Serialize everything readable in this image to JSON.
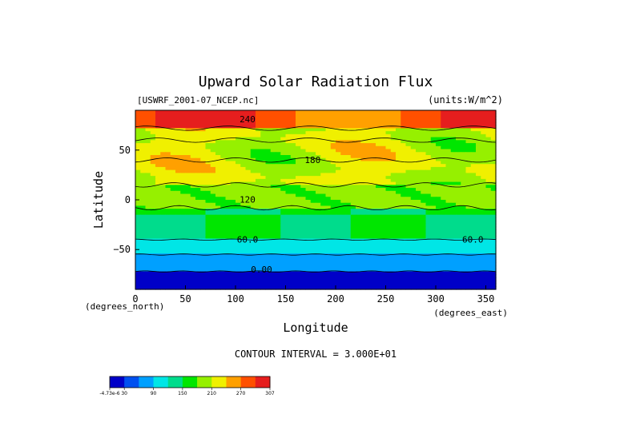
{
  "chart_data": {
    "type": "heatmap",
    "title": "Upward Solar Radiation Flux",
    "file_label": "[USWRF_2001-07_NCEP.nc]",
    "units_label": "(units:W/m^2)",
    "xlabel": "Longitude",
    "ylabel": "Latitude",
    "x_unit_label": "(degrees_east)",
    "y_unit_label": "(degrees_north)",
    "xlim": [
      0,
      360
    ],
    "ylim": [
      -90,
      90
    ],
    "x_ticks": [
      0,
      50,
      100,
      150,
      200,
      250,
      300,
      350
    ],
    "y_ticks": [
      -50,
      0,
      50
    ],
    "contour_interval_text": "CONTOUR INTERVAL = 3.000E+01",
    "contour_labels": [
      {
        "text": "0.00",
        "lon": 126,
        "lat": -73
      },
      {
        "text": "60.0",
        "lon": 112,
        "lat": -43
      },
      {
        "text": "60.0",
        "lon": 337,
        "lat": -43
      },
      {
        "text": "120",
        "lon": 112,
        "lat": -3
      },
      {
        "text": "180",
        "lon": 177,
        "lat": 37
      },
      {
        "text": "240",
        "lon": 112,
        "lat": 78
      }
    ],
    "colorbar": {
      "colors": [
        "#0000c8",
        "#0050f0",
        "#00a0ff",
        "#00e6e6",
        "#00dc8c",
        "#00e600",
        "#96f000",
        "#f0f000",
        "#ffa000",
        "#ff5000",
        "#e61e1e"
      ],
      "tick_labels": [
        "-4.73e-6",
        "30",
        "90",
        "150",
        "210",
        "270",
        "307"
      ]
    }
  }
}
